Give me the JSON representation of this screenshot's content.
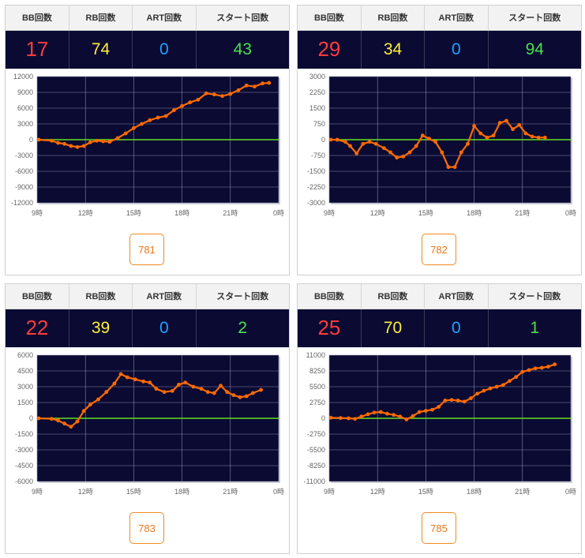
{
  "headers": {
    "bb": "BB回数",
    "rb": "RB回数",
    "art": "ART回数",
    "start": "スタート回数"
  },
  "x_ticks": [
    "9時",
    "12時",
    "15時",
    "18時",
    "21時",
    "0時"
  ],
  "colors": {
    "plot_bg": "#0a0a33",
    "line": "#ff6a00",
    "zero": "#66dd22",
    "grid": "#8a8aa8"
  },
  "panels": [
    {
      "bb": "17",
      "rb": "74",
      "art": "0",
      "start": "43",
      "machine": "781",
      "chart_data": {
        "type": "line",
        "ylim": [
          -12000,
          12000
        ],
        "yticks": [
          12000,
          9000,
          6000,
          3000,
          0,
          -3000,
          -6000,
          -9000,
          -12000
        ],
        "xticks": [
          "9時",
          "12時",
          "15時",
          "18時",
          "21時",
          "0時"
        ],
        "x": [
          9.1,
          9.9,
          10.3,
          10.7,
          11.1,
          11.5,
          11.9,
          12.3,
          12.7,
          13.1,
          13.5,
          14.0,
          14.5,
          15.0,
          15.5,
          16.0,
          16.5,
          17.0,
          17.5,
          18.0,
          18.5,
          19.0,
          19.5,
          20.0,
          20.5,
          21.0,
          21.5,
          22.0,
          22.5,
          23.0,
          23.4
        ],
        "y": [
          0,
          -200,
          -600,
          -800,
          -1200,
          -1400,
          -1200,
          -500,
          -200,
          -300,
          -400,
          300,
          1200,
          2200,
          3000,
          3700,
          4200,
          4500,
          5600,
          6400,
          7100,
          7600,
          8800,
          8600,
          8300,
          8700,
          9400,
          10300,
          10100,
          10700,
          10800
        ]
      }
    },
    {
      "bb": "29",
      "rb": "34",
      "art": "0",
      "start": "94",
      "machine": "782",
      "chart_data": {
        "type": "line",
        "ylim": [
          -3000,
          3000
        ],
        "yticks": [
          3000,
          2250,
          1500,
          750,
          0,
          -750,
          -1500,
          -2250,
          -3000
        ],
        "xticks": [
          "9時",
          "12時",
          "15時",
          "18時",
          "21時",
          "0時"
        ],
        "x": [
          9.1,
          9.5,
          10.0,
          10.3,
          10.7,
          11.1,
          11.5,
          11.9,
          12.4,
          12.8,
          13.2,
          13.6,
          14.0,
          14.4,
          14.8,
          15.2,
          15.6,
          16.0,
          16.4,
          16.8,
          17.2,
          17.6,
          18.0,
          18.4,
          18.8,
          19.2,
          19.6,
          20.0,
          20.4,
          20.8,
          21.2,
          21.6,
          22.0,
          22.4
        ],
        "y": [
          0,
          0,
          -100,
          -300,
          -650,
          -200,
          -100,
          -200,
          -400,
          -600,
          -850,
          -800,
          -600,
          -300,
          200,
          50,
          -100,
          -600,
          -1300,
          -1300,
          -600,
          -200,
          650,
          300,
          100,
          200,
          800,
          900,
          500,
          700,
          300,
          150,
          100,
          100
        ]
      }
    },
    {
      "bb": "22",
      "rb": "39",
      "art": "0",
      "start": "2",
      "machine": "783",
      "chart_data": {
        "type": "line",
        "ylim": [
          -6000,
          6000
        ],
        "yticks": [
          6000,
          4500,
          3000,
          1500,
          0,
          -1500,
          -3000,
          -4500,
          -6000
        ],
        "xticks": [
          "9時",
          "12時",
          "15時",
          "18時",
          "21時",
          "0時"
        ],
        "x": [
          9.1,
          9.9,
          10.3,
          10.7,
          11.1,
          11.5,
          11.9,
          12.3,
          12.8,
          13.3,
          13.8,
          14.2,
          14.6,
          15.1,
          15.6,
          16.0,
          16.4,
          16.9,
          17.4,
          17.8,
          18.2,
          18.7,
          19.2,
          19.6,
          20.0,
          20.4,
          20.8,
          21.2,
          21.6,
          22.0,
          22.4,
          22.9
        ],
        "y": [
          0,
          -50,
          -200,
          -500,
          -800,
          -300,
          700,
          1300,
          1800,
          2500,
          3300,
          4200,
          3900,
          3700,
          3500,
          3400,
          2800,
          2500,
          2600,
          3200,
          3400,
          3000,
          2800,
          2500,
          2400,
          3100,
          2500,
          2200,
          2000,
          2100,
          2400,
          2700
        ]
      }
    },
    {
      "bb": "25",
      "rb": "70",
      "art": "0",
      "start": "1",
      "machine": "785",
      "chart_data": {
        "type": "line",
        "ylim": [
          -11000,
          11000
        ],
        "yticks": [
          11000,
          8250,
          5500,
          2750,
          0,
          -2750,
          -5500,
          -8250,
          -11000
        ],
        "xticks": [
          "9時",
          "12時",
          "15時",
          "18時",
          "21時",
          "0時"
        ],
        "x": [
          9.1,
          9.7,
          10.2,
          10.6,
          11.0,
          11.4,
          11.8,
          12.2,
          12.6,
          13.0,
          13.4,
          13.8,
          14.2,
          14.6,
          15.0,
          15.4,
          15.8,
          16.2,
          16.6,
          17.0,
          17.4,
          17.8,
          18.2,
          18.6,
          19.0,
          19.4,
          19.8,
          20.2,
          20.6,
          21.0,
          21.4,
          21.8,
          22.2,
          22.6,
          23.0
        ],
        "y": [
          100,
          50,
          0,
          -100,
          300,
          700,
          1000,
          1100,
          800,
          600,
          300,
          -200,
          400,
          1100,
          1300,
          1500,
          2000,
          3100,
          3200,
          3100,
          2900,
          3500,
          4300,
          4800,
          5200,
          5500,
          5800,
          6500,
          7200,
          8100,
          8400,
          8700,
          8800,
          9000,
          9400
        ]
      }
    }
  ]
}
